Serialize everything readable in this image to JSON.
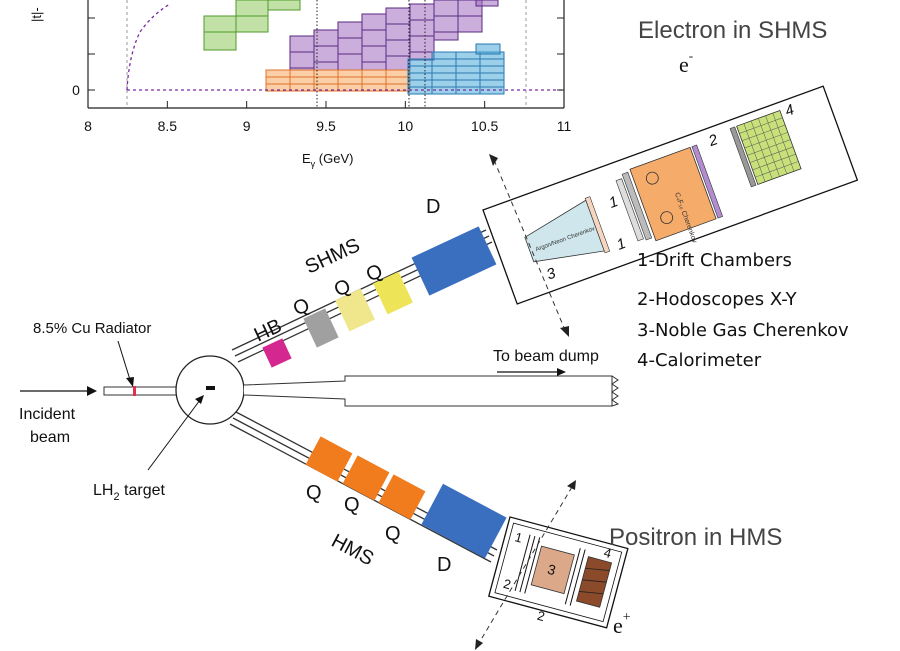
{
  "plot": {
    "xlabel_main": "E",
    "xlabel_sub": "γ",
    "xlabel_unit": " (GeV)",
    "ylabel_clip": "|t|-",
    "y_zero_label": "0",
    "x_ticks": [
      "8",
      "8.5",
      "9",
      "9.5",
      "10",
      "10.5",
      "11"
    ],
    "x_range": [
      8,
      11
    ],
    "colors": {
      "green": "#8ec85e",
      "purple": "#a06cc0",
      "orange": "#f5a85e",
      "blue": "#4aa8d8",
      "dash": "#7a2aa0"
    }
  },
  "spectrometers": {
    "shms_title": "Electron in SHMS",
    "shms_particle": "e",
    "shms_charge": "-",
    "hms_title": "Positron in HMS",
    "hms_particle": "e",
    "hms_charge": "+",
    "shms_name": "SHMS",
    "hms_name": "HMS"
  },
  "magnets": {
    "hb": "HB",
    "q": "Q",
    "d": "D"
  },
  "detector_legend": [
    "1-Drift Chambers",
    "2-Hodoscopes X-Y",
    "3-Noble Gas Cherenkov",
    "4-Calorimeter"
  ],
  "detector_numbers": [
    "1",
    "2",
    "3",
    "4"
  ],
  "shms_hut_text": {
    "cherenkov_ng": "Argon/Neon Cherenkov",
    "cherenkov_hg": "C₄F₁₀ Cherenkov"
  },
  "beamline": {
    "radiator": "8.5% Cu  Radiator",
    "incident_1": "Incident",
    "incident_2": "beam",
    "target_main": "LH",
    "target_sub": "2",
    "target_rest": " target",
    "dump": "To beam dump"
  },
  "component_colors": {
    "hb": "#d4278f",
    "q_gray": "#a0a0a0",
    "q_yellow1": "#f0e68c",
    "q_yellow2": "#ede458",
    "dipole": "#3a6fc0",
    "q_orange": "#f07c1e",
    "hg_cherenkov": "#f5ab6a",
    "calorimeter": "#c8e07a",
    "hms_cherenkov": "#dca88a",
    "hms_cal": "#8b4a2a"
  }
}
